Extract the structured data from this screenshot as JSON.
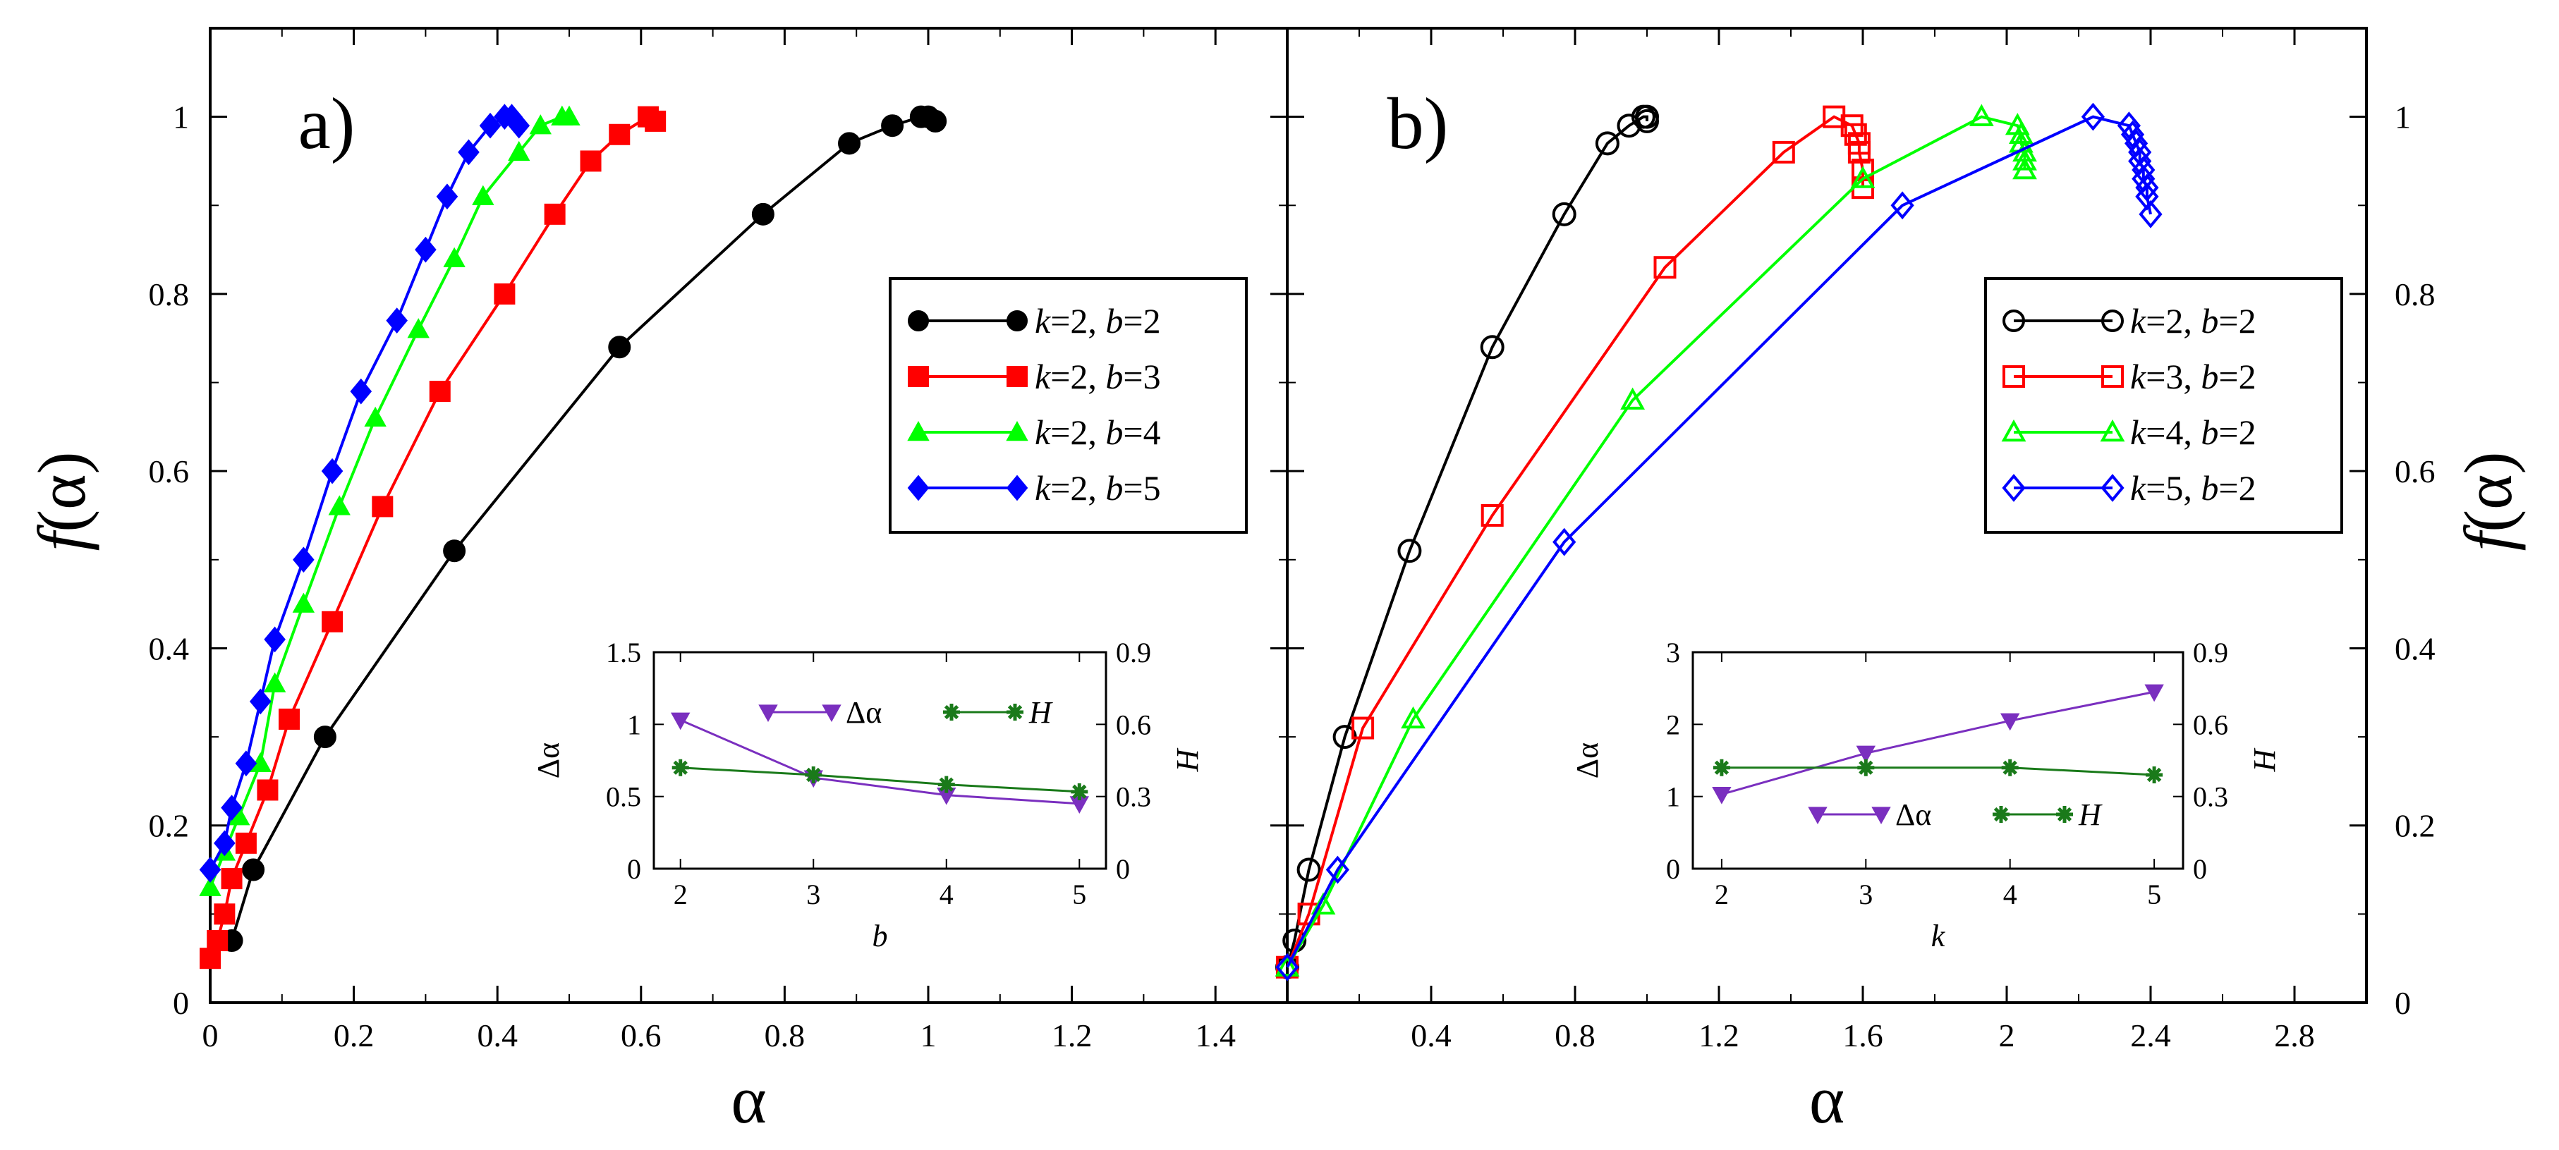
{
  "colors": {
    "black": "#000000",
    "red": "#ff0000",
    "green": "#00ff00",
    "blue": "#0000ff",
    "purple": "#7a2fbf",
    "darkgreen": "#1a7a1a"
  },
  "chart_data": [
    {
      "type": "line",
      "panel_label": "a)",
      "xlabel": "α",
      "ylabel": "f(α)",
      "xlim": [
        0,
        1.5
      ],
      "ylim": [
        0,
        1.1
      ],
      "x_ticks": [
        "0",
        "0.2",
        "0.4",
        "0.6",
        "0.8",
        "1",
        "1.2",
        "1.4"
      ],
      "y_ticks": [
        "0",
        "0.2",
        "0.4",
        "0.6",
        "0.8",
        "1"
      ],
      "legend": {
        "position": "right",
        "entries": [
          {
            "k": "2",
            "b": "2"
          },
          {
            "k": "2",
            "b": "3"
          },
          {
            "k": "2",
            "b": "4"
          },
          {
            "k": "2",
            "b": "5"
          }
        ]
      },
      "series": [
        {
          "name": "k=2, b=2",
          "color": "#000000",
          "marker": "circle-filled",
          "points": [
            [
              0.03,
              0.07
            ],
            [
              0.06,
              0.15
            ],
            [
              0.16,
              0.3
            ],
            [
              0.34,
              0.51
            ],
            [
              0.57,
              0.74
            ],
            [
              0.77,
              0.89
            ],
            [
              0.89,
              0.97
            ],
            [
              0.95,
              0.99
            ],
            [
              0.99,
              1.0
            ],
            [
              1.0,
              1.0
            ],
            [
              1.01,
              0.995
            ]
          ]
        },
        {
          "name": "k=2, b=3",
          "color": "#ff0000",
          "marker": "square-filled",
          "points": [
            [
              0.0,
              0.05
            ],
            [
              0.01,
              0.07
            ],
            [
              0.02,
              0.1
            ],
            [
              0.03,
              0.14
            ],
            [
              0.05,
              0.18
            ],
            [
              0.08,
              0.24
            ],
            [
              0.11,
              0.32
            ],
            [
              0.17,
              0.43
            ],
            [
              0.24,
              0.56
            ],
            [
              0.32,
              0.69
            ],
            [
              0.41,
              0.8
            ],
            [
              0.48,
              0.89
            ],
            [
              0.53,
              0.95
            ],
            [
              0.57,
              0.98
            ],
            [
              0.61,
              1.0
            ],
            [
              0.62,
              0.995
            ]
          ]
        },
        {
          "name": "k=2, b=4",
          "color": "#00ff00",
          "marker": "triangle-filled",
          "points": [
            [
              0.0,
              0.13
            ],
            [
              0.02,
              0.17
            ],
            [
              0.04,
              0.21
            ],
            [
              0.07,
              0.27
            ],
            [
              0.09,
              0.36
            ],
            [
              0.13,
              0.45
            ],
            [
              0.18,
              0.56
            ],
            [
              0.23,
              0.66
            ],
            [
              0.29,
              0.76
            ],
            [
              0.34,
              0.84
            ],
            [
              0.38,
              0.91
            ],
            [
              0.43,
              0.96
            ],
            [
              0.46,
              0.99
            ],
            [
              0.49,
              1.0
            ],
            [
              0.5,
              1.0
            ]
          ]
        },
        {
          "name": "k=2, b=5",
          "color": "#0000ff",
          "marker": "diamond-filled",
          "points": [
            [
              0.0,
              0.15
            ],
            [
              0.02,
              0.18
            ],
            [
              0.03,
              0.22
            ],
            [
              0.05,
              0.27
            ],
            [
              0.07,
              0.34
            ],
            [
              0.09,
              0.41
            ],
            [
              0.13,
              0.5
            ],
            [
              0.17,
              0.6
            ],
            [
              0.21,
              0.69
            ],
            [
              0.26,
              0.77
            ],
            [
              0.3,
              0.85
            ],
            [
              0.33,
              0.91
            ],
            [
              0.36,
              0.96
            ],
            [
              0.39,
              0.99
            ],
            [
              0.41,
              1.0
            ],
            [
              0.42,
              1.0
            ],
            [
              0.43,
              0.99
            ]
          ]
        }
      ],
      "inset": {
        "xlabel": "b",
        "ylabel_left": "Δα",
        "ylabel_right": "H",
        "xlim": [
          1.8,
          5.2
        ],
        "ylim_left": [
          0,
          1.5
        ],
        "ylim_right": [
          0,
          0.9
        ],
        "x_ticks": [
          "2",
          "3",
          "4",
          "5"
        ],
        "y_left_ticks": [
          "0",
          "0.5",
          "1",
          "1.5"
        ],
        "y_right_ticks": [
          "0",
          "0.3",
          "0.6",
          "0.9"
        ],
        "legend_position": "top",
        "series": [
          {
            "name": "Δα",
            "axis": "left",
            "color": "#7a2fbf",
            "marker": "triangle-down",
            "x": [
              2,
              3,
              4,
              5
            ],
            "y": [
              1.03,
              0.63,
              0.51,
              0.45
            ]
          },
          {
            "name": "H",
            "axis": "right",
            "color": "#1a7a1a",
            "marker": "star",
            "x": [
              2,
              3,
              4,
              5
            ],
            "y": [
              0.42,
              0.39,
              0.35,
              0.32
            ]
          }
        ]
      }
    },
    {
      "type": "line",
      "panel_label": "b)",
      "xlabel": "α",
      "ylabel": "f(α)",
      "xlim": [
        0,
        3.0
      ],
      "ylim": [
        0,
        1.1
      ],
      "x_ticks": [
        "0.4",
        "0.8",
        "1.2",
        "1.6",
        "2",
        "2.4",
        "2.8"
      ],
      "y_ticks": [
        "0",
        "0.2",
        "0.4",
        "0.6",
        "0.8",
        "1"
      ],
      "legend": {
        "position": "right",
        "entries": [
          {
            "k": "2",
            "b": "2"
          },
          {
            "k": "3",
            "b": "2"
          },
          {
            "k": "4",
            "b": "2"
          },
          {
            "k": "5",
            "b": "2"
          }
        ]
      },
      "series": [
        {
          "name": "k=2, b=2",
          "color": "#000000",
          "marker": "circle-open",
          "points": [
            [
              0.0,
              0.04
            ],
            [
              0.02,
              0.07
            ],
            [
              0.06,
              0.15
            ],
            [
              0.16,
              0.3
            ],
            [
              0.34,
              0.51
            ],
            [
              0.57,
              0.74
            ],
            [
              0.77,
              0.89
            ],
            [
              0.89,
              0.97
            ],
            [
              0.95,
              0.99
            ],
            [
              0.99,
              1.0
            ],
            [
              1.0,
              1.0
            ],
            [
              1.0,
              0.995
            ]
          ]
        },
        {
          "name": "k=3, b=2",
          "color": "#ff0000",
          "marker": "square-open",
          "points": [
            [
              0.0,
              0.04
            ],
            [
              0.06,
              0.1
            ],
            [
              0.21,
              0.31
            ],
            [
              0.57,
              0.55
            ],
            [
              1.05,
              0.83
            ],
            [
              1.38,
              0.96
            ],
            [
              1.52,
              1.0
            ],
            [
              1.57,
              0.99
            ],
            [
              1.58,
              0.98
            ],
            [
              1.59,
              0.97
            ],
            [
              1.59,
              0.96
            ],
            [
              1.6,
              0.94
            ],
            [
              1.6,
              0.92
            ]
          ]
        },
        {
          "name": "k=4, b=2",
          "color": "#00ff00",
          "marker": "triangle-open",
          "points": [
            [
              0.0,
              0.04
            ],
            [
              0.1,
              0.11
            ],
            [
              0.35,
              0.32
            ],
            [
              0.96,
              0.68
            ],
            [
              1.6,
              0.93
            ],
            [
              1.93,
              1.0
            ],
            [
              2.03,
              0.99
            ],
            [
              2.04,
              0.98
            ],
            [
              2.04,
              0.97
            ],
            [
              2.05,
              0.96
            ],
            [
              2.05,
              0.95
            ],
            [
              2.05,
              0.94
            ]
          ]
        },
        {
          "name": "k=5, b=2",
          "color": "#0000ff",
          "marker": "diamond-open",
          "points": [
            [
              0.0,
              0.04
            ],
            [
              0.14,
              0.15
            ],
            [
              0.77,
              0.52
            ],
            [
              1.71,
              0.9
            ],
            [
              2.24,
              1.0
            ],
            [
              2.34,
              0.99
            ],
            [
              2.35,
              0.98
            ],
            [
              2.36,
              0.97
            ],
            [
              2.37,
              0.96
            ],
            [
              2.37,
              0.95
            ],
            [
              2.38,
              0.94
            ],
            [
              2.38,
              0.93
            ],
            [
              2.39,
              0.92
            ],
            [
              2.39,
              0.91
            ],
            [
              2.4,
              0.89
            ]
          ]
        }
      ],
      "inset": {
        "xlabel": "k",
        "ylabel_left": "Δα",
        "ylabel_right": "H",
        "xlim": [
          1.8,
          5.2
        ],
        "ylim_left": [
          0,
          3
        ],
        "ylim_right": [
          0,
          0.9
        ],
        "x_ticks": [
          "2",
          "3",
          "4",
          "5"
        ],
        "y_left_ticks": [
          "0",
          "1",
          "2",
          "3"
        ],
        "y_right_ticks": [
          "0",
          "0.3",
          "0.6",
          "0.9"
        ],
        "legend_position": "bottom",
        "series": [
          {
            "name": "Δα",
            "axis": "left",
            "color": "#7a2fbf",
            "marker": "triangle-down",
            "x": [
              2,
              3,
              4,
              5
            ],
            "y": [
              1.03,
              1.6,
              2.05,
              2.45
            ]
          },
          {
            "name": "H",
            "axis": "right",
            "color": "#1a7a1a",
            "marker": "star",
            "x": [
              2,
              3,
              4,
              5
            ],
            "y": [
              0.42,
              0.42,
              0.42,
              0.39
            ]
          }
        ]
      }
    }
  ]
}
